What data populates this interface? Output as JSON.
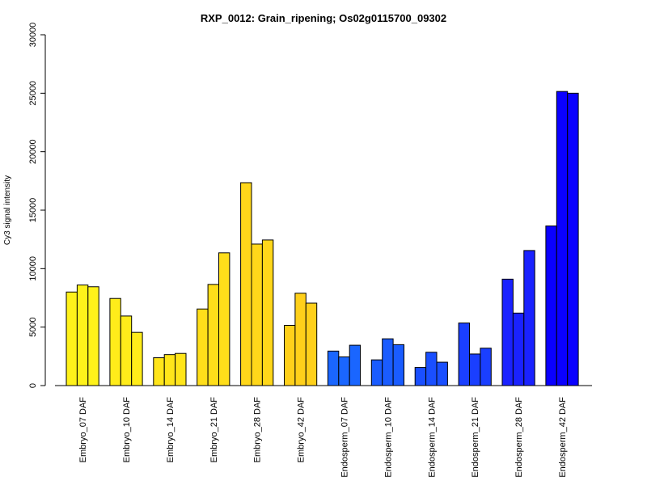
{
  "chart_data": {
    "type": "bar",
    "title": "RXP_0012: Grain_ripening; Os02g0115700_09302",
    "xlabel": "",
    "ylabel": "Cy3 signal intensity",
    "ylim": [
      0,
      30000
    ],
    "yticks": [
      0,
      5000,
      10000,
      15000,
      20000,
      25000,
      30000
    ],
    "grid": false,
    "legend": "none",
    "categories": [
      "Embryo_07 DAF",
      "Embryo_10 DAF",
      "Embryo_14 DAF",
      "Embryo_21 DAF",
      "Embryo_28 DAF",
      "Embryo_42 DAF",
      "Endosperm_07 DAF",
      "Endosperm_10 DAF",
      "Endosperm_14 DAF",
      "Endosperm_21 DAF",
      "Endosperm_28 DAF",
      "Endosperm_42 DAF"
    ],
    "group_colors": [
      "#FFF21A",
      "#FFEC1A",
      "#FFE51A",
      "#FFDE1A",
      "#FFD71A",
      "#FFD01A",
      "#1A66FF",
      "#1A5CFF",
      "#1A4FFF",
      "#1A3FFF",
      "#1A22FF",
      "#0A00FF"
    ],
    "series": [
      {
        "values": [
          8000,
          7450,
          2380,
          6550,
          17350,
          5150,
          2950,
          2200,
          1550,
          5350,
          9100,
          13650
        ]
      },
      {
        "values": [
          8600,
          5950,
          2650,
          8650,
          12100,
          7900,
          2450,
          4000,
          2850,
          2700,
          6200,
          25150
        ]
      },
      {
        "values": [
          8450,
          4550,
          2750,
          11350,
          12450,
          7050,
          3450,
          3500,
          2000,
          3200,
          11550,
          25000
        ]
      }
    ]
  }
}
